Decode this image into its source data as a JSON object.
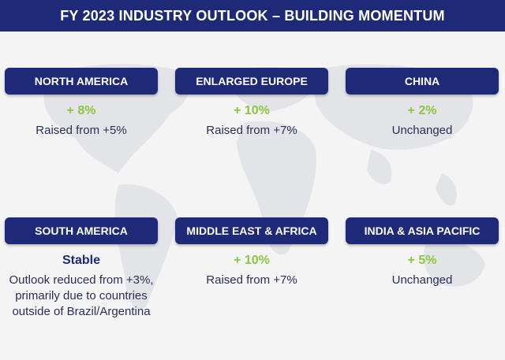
{
  "header": {
    "title": "FY 2023 INDUSTRY OUTLOOK – BUILDING MOMENTUM"
  },
  "regions": [
    {
      "name": "NORTH AMERICA",
      "value": "+ 8%",
      "desc": "Raised from +5%"
    },
    {
      "name": "ENLARGED EUROPE",
      "value": "+ 10%",
      "desc": "Raised from +7%"
    },
    {
      "name": "CHINA",
      "value": "+ 2%",
      "desc": "Unchanged"
    },
    {
      "name": "SOUTH AMERICA",
      "value": "Stable",
      "desc": "Outlook reduced from +3%, primarily due to countries outside of Brazil/Argentina"
    },
    {
      "name": "MIDDLE EAST & AFRICA",
      "value": "+ 10%",
      "desc": "Raised from +7%"
    },
    {
      "name": "INDIA & ASIA PACIFIC",
      "value": "+ 5%",
      "desc": "Unchanged"
    }
  ],
  "colors": {
    "primary": "#1e2a78",
    "positive": "#8cc63f",
    "background": "#f4f4f5"
  },
  "background_icon": "world-map-icon"
}
